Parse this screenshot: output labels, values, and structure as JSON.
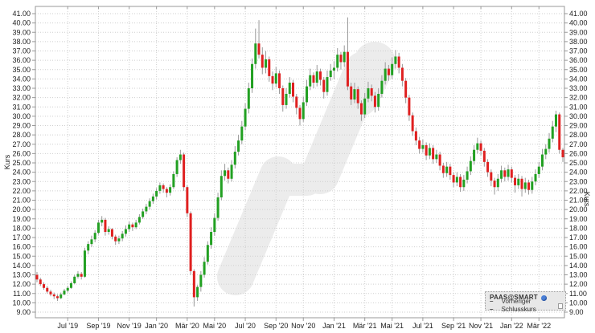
{
  "legend": {
    "series_label": "PAAS@SMART",
    "prev_close_label": "Vorheriger Schlusskurs",
    "dash_icon": "– –"
  },
  "chart_data": {
    "type": "candlestick",
    "ylabel": "Kurs",
    "ylim": [
      9,
      41
    ],
    "y_tick_step": 1,
    "grid": "dotted",
    "y_tick_labels": [
      "41.00",
      "40.00",
      "39.00",
      "38.00",
      "37.00",
      "36.00",
      "35.00",
      "34.00",
      "33.00",
      "32.00",
      "31.00",
      "30.00",
      "29.00",
      "28.00",
      "27.00",
      "26.00",
      "25.00",
      "24.00",
      "23.00",
      "22.00",
      "21.00",
      "20.00",
      "19.00",
      "18.00",
      "17.00",
      "16.00",
      "15.00",
      "14.00",
      "13.00",
      "12.00",
      "11.00",
      "10.00",
      "9.00"
    ],
    "x_ticks": [
      {
        "label": "Jul '19",
        "week": 9
      },
      {
        "label": "Sep '19",
        "week": 18
      },
      {
        "label": "Nov '19",
        "week": 27
      },
      {
        "label": "Jan '20",
        "week": 35
      },
      {
        "label": "Mär '20",
        "week": 44
      },
      {
        "label": "Mai '20",
        "week": 52
      },
      {
        "label": "Jul '20",
        "week": 61
      },
      {
        "label": "Sep '20",
        "week": 70
      },
      {
        "label": "Nov '20",
        "week": 78
      },
      {
        "label": "Jan '21",
        "week": 87
      },
      {
        "label": "Mär '21",
        "week": 96
      },
      {
        "label": "Mai '21",
        "week": 104
      },
      {
        "label": "Jul '21",
        "week": 113
      },
      {
        "label": "Sep '21",
        "week": 122
      },
      {
        "label": "Nov '21",
        "week": 130
      },
      {
        "label": "Jan '22",
        "week": 139
      },
      {
        "label": "Mär '22",
        "week": 147
      }
    ],
    "up_color": "#22a022",
    "down_color": "#df2020",
    "wick_color": "#999999",
    "grid_color": "#cfcfcf",
    "frame_color": "#9a9a9a",
    "text_color": "#222222",
    "watermark_color": "#ececec",
    "candles": [
      [
        13.0,
        13.3,
        12.2,
        12.5
      ],
      [
        12.5,
        12.7,
        11.8,
        12.0
      ],
      [
        12.0,
        12.2,
        11.4,
        11.6
      ],
      [
        11.6,
        11.8,
        11.0,
        11.2
      ],
      [
        11.2,
        11.4,
        10.7,
        10.9
      ],
      [
        10.9,
        11.1,
        10.4,
        10.7
      ],
      [
        10.7,
        10.9,
        10.2,
        10.5
      ],
      [
        10.5,
        11.1,
        10.4,
        10.9
      ],
      [
        10.9,
        11.5,
        10.8,
        11.3
      ],
      [
        11.3,
        11.8,
        11.1,
        11.6
      ],
      [
        11.6,
        12.3,
        11.5,
        12.1
      ],
      [
        12.1,
        13.0,
        12.0,
        12.8
      ],
      [
        12.8,
        13.4,
        12.6,
        13.1
      ],
      [
        13.1,
        13.3,
        12.5,
        12.8
      ],
      [
        12.8,
        15.9,
        12.7,
        15.6
      ],
      [
        15.6,
        16.6,
        15.2,
        16.3
      ],
      [
        16.3,
        17.2,
        16.0,
        16.8
      ],
      [
        16.8,
        17.8,
        16.5,
        17.5
      ],
      [
        17.5,
        18.9,
        17.3,
        18.6
      ],
      [
        18.6,
        19.3,
        18.2,
        18.9
      ],
      [
        18.9,
        19.1,
        17.2,
        17.6
      ],
      [
        17.6,
        18.2,
        17.3,
        17.9
      ],
      [
        17.9,
        18.0,
        16.8,
        17.1
      ],
      [
        17.1,
        17.3,
        16.2,
        16.6
      ],
      [
        16.6,
        17.2,
        16.3,
        16.9
      ],
      [
        16.9,
        17.7,
        16.6,
        17.4
      ],
      [
        17.4,
        18.3,
        17.1,
        17.9
      ],
      [
        17.9,
        18.7,
        17.6,
        18.4
      ],
      [
        18.4,
        18.6,
        17.7,
        18.1
      ],
      [
        18.1,
        18.9,
        17.9,
        18.6
      ],
      [
        18.6,
        19.5,
        18.4,
        19.2
      ],
      [
        19.2,
        20.1,
        19.0,
        19.8
      ],
      [
        19.8,
        20.6,
        19.5,
        20.3
      ],
      [
        20.3,
        21.2,
        20.0,
        20.9
      ],
      [
        20.9,
        21.7,
        20.6,
        21.4
      ],
      [
        21.4,
        22.3,
        21.1,
        22.0
      ],
      [
        22.0,
        22.9,
        21.7,
        22.6
      ],
      [
        22.6,
        22.8,
        21.8,
        22.2
      ],
      [
        22.2,
        22.4,
        21.3,
        21.8
      ],
      [
        21.8,
        22.7,
        21.5,
        22.4
      ],
      [
        22.4,
        24.1,
        22.2,
        23.8
      ],
      [
        23.8,
        25.6,
        23.5,
        25.3
      ],
      [
        25.3,
        26.4,
        24.9,
        25.9
      ],
      [
        25.9,
        26.1,
        22.0,
        22.4
      ],
      [
        22.4,
        22.6,
        19.2,
        19.6
      ],
      [
        19.6,
        19.8,
        13.0,
        13.4
      ],
      [
        13.4,
        13.6,
        9.6,
        10.6
      ],
      [
        10.6,
        11.9,
        10.2,
        11.7
      ],
      [
        11.7,
        13.4,
        11.2,
        13.0
      ],
      [
        13.0,
        14.9,
        12.7,
        14.4
      ],
      [
        14.4,
        16.6,
        14.1,
        16.2
      ],
      [
        16.2,
        18.1,
        15.8,
        17.6
      ],
      [
        17.6,
        19.6,
        17.2,
        19.1
      ],
      [
        19.1,
        21.8,
        18.8,
        21.3
      ],
      [
        21.3,
        24.2,
        21.0,
        23.6
      ],
      [
        23.6,
        24.9,
        23.1,
        24.2
      ],
      [
        24.2,
        24.5,
        22.8,
        23.3
      ],
      [
        23.3,
        25.3,
        23.0,
        24.8
      ],
      [
        24.8,
        26.8,
        24.4,
        26.2
      ],
      [
        26.2,
        28.0,
        25.8,
        27.4
      ],
      [
        27.4,
        29.5,
        27.0,
        28.9
      ],
      [
        28.9,
        31.4,
        28.5,
        30.8
      ],
      [
        30.8,
        33.6,
        30.3,
        33.0
      ],
      [
        33.0,
        36.2,
        32.5,
        35.6
      ],
      [
        35.6,
        39.4,
        35.1,
        37.8
      ],
      [
        37.8,
        40.3,
        36.2,
        36.6
      ],
      [
        36.6,
        37.4,
        34.5,
        35.2
      ],
      [
        35.2,
        37.0,
        34.6,
        36.1
      ],
      [
        36.1,
        36.4,
        33.7,
        34.3
      ],
      [
        34.3,
        34.8,
        32.8,
        33.5
      ],
      [
        33.5,
        35.3,
        33.1,
        34.6
      ],
      [
        34.6,
        34.9,
        32.4,
        33.0
      ],
      [
        33.0,
        33.3,
        30.5,
        31.2
      ],
      [
        31.2,
        33.0,
        30.8,
        32.4
      ],
      [
        32.4,
        34.2,
        32.0,
        33.6
      ],
      [
        33.6,
        33.9,
        31.5,
        32.1
      ],
      [
        32.1,
        32.4,
        30.2,
        30.9
      ],
      [
        30.9,
        31.2,
        29.0,
        29.7
      ],
      [
        29.7,
        32.1,
        29.4,
        31.5
      ],
      [
        31.5,
        33.9,
        31.1,
        33.2
      ],
      [
        33.2,
        35.1,
        32.8,
        34.4
      ],
      [
        34.4,
        34.7,
        33.0,
        33.6
      ],
      [
        33.6,
        35.5,
        33.2,
        34.8
      ],
      [
        34.8,
        35.1,
        33.3,
        33.9
      ],
      [
        33.9,
        34.2,
        31.9,
        32.6
      ],
      [
        32.6,
        34.9,
        32.2,
        34.2
      ],
      [
        34.2,
        35.6,
        33.8,
        34.9
      ],
      [
        34.9,
        35.9,
        34.0,
        35.2
      ],
      [
        35.2,
        37.3,
        34.8,
        36.6
      ],
      [
        36.6,
        36.9,
        35.0,
        35.8
      ],
      [
        35.8,
        37.6,
        35.3,
        36.9
      ],
      [
        36.9,
        40.6,
        32.8,
        33.2
      ],
      [
        33.2,
        33.6,
        31.2,
        31.8
      ],
      [
        31.8,
        33.6,
        31.4,
        32.9
      ],
      [
        32.9,
        33.2,
        30.8,
        31.4
      ],
      [
        31.4,
        31.7,
        29.5,
        30.2
      ],
      [
        30.2,
        32.5,
        29.8,
        31.9
      ],
      [
        31.9,
        33.7,
        31.5,
        33.0
      ],
      [
        33.0,
        33.4,
        31.6,
        32.2
      ],
      [
        32.2,
        32.6,
        30.4,
        31.0
      ],
      [
        31.0,
        33.0,
        30.6,
        32.4
      ],
      [
        32.4,
        34.4,
        32.0,
        33.8
      ],
      [
        33.8,
        35.8,
        33.4,
        35.1
      ],
      [
        35.1,
        35.5,
        33.8,
        34.4
      ],
      [
        34.4,
        36.3,
        34.0,
        35.6
      ],
      [
        35.6,
        37.1,
        35.1,
        36.4
      ],
      [
        36.4,
        36.8,
        34.6,
        35.2
      ],
      [
        35.2,
        35.6,
        33.2,
        33.8
      ],
      [
        33.8,
        34.1,
        31.4,
        32.0
      ],
      [
        32.0,
        32.3,
        29.5,
        30.1
      ],
      [
        30.1,
        30.4,
        27.9,
        28.4
      ],
      [
        28.4,
        28.8,
        26.9,
        27.4
      ],
      [
        27.4,
        27.8,
        26.0,
        26.5
      ],
      [
        26.5,
        27.5,
        26.1,
        26.9
      ],
      [
        26.9,
        27.2,
        25.3,
        25.8
      ],
      [
        25.8,
        27.1,
        25.4,
        26.6
      ],
      [
        26.6,
        26.9,
        24.9,
        25.4
      ],
      [
        25.4,
        26.4,
        25.0,
        25.9
      ],
      [
        25.9,
        26.2,
        24.2,
        24.7
      ],
      [
        24.7,
        25.0,
        23.4,
        23.9
      ],
      [
        23.9,
        25.1,
        23.5,
        24.6
      ],
      [
        24.6,
        24.9,
        23.2,
        23.7
      ],
      [
        23.7,
        24.0,
        22.4,
        22.9
      ],
      [
        22.9,
        24.0,
        22.5,
        23.5
      ],
      [
        23.5,
        23.8,
        21.9,
        22.4
      ],
      [
        22.4,
        23.7,
        22.0,
        23.2
      ],
      [
        23.2,
        24.6,
        22.8,
        24.1
      ],
      [
        24.1,
        25.7,
        23.7,
        25.2
      ],
      [
        25.2,
        26.9,
        24.8,
        26.4
      ],
      [
        26.4,
        27.7,
        26.0,
        27.1
      ],
      [
        27.1,
        27.4,
        25.8,
        26.3
      ],
      [
        26.3,
        26.6,
        24.6,
        25.1
      ],
      [
        25.1,
        25.4,
        23.5,
        24.0
      ],
      [
        24.0,
        24.3,
        22.5,
        23.1
      ],
      [
        23.1,
        23.4,
        21.6,
        22.4
      ],
      [
        22.4,
        23.8,
        22.0,
        23.3
      ],
      [
        23.3,
        24.7,
        22.9,
        24.2
      ],
      [
        24.2,
        24.5,
        23.0,
        23.5
      ],
      [
        23.5,
        24.8,
        23.1,
        24.3
      ],
      [
        24.3,
        24.6,
        22.9,
        23.4
      ],
      [
        23.4,
        23.7,
        21.8,
        22.6
      ],
      [
        22.6,
        23.8,
        22.2,
        23.3
      ],
      [
        23.3,
        23.6,
        21.4,
        22.2
      ],
      [
        22.2,
        23.4,
        21.8,
        22.9
      ],
      [
        22.9,
        23.2,
        21.6,
        22.1
      ],
      [
        22.1,
        23.5,
        21.7,
        23.0
      ],
      [
        23.0,
        24.3,
        22.6,
        23.8
      ],
      [
        23.8,
        25.1,
        23.4,
        24.6
      ],
      [
        24.6,
        26.5,
        24.2,
        25.9
      ],
      [
        25.9,
        27.0,
        25.4,
        26.5
      ],
      [
        26.5,
        28.2,
        26.1,
        27.6
      ],
      [
        27.6,
        29.5,
        27.2,
        28.9
      ],
      [
        28.9,
        30.6,
        28.3,
        30.2
      ],
      [
        30.2,
        30.4,
        26.0,
        26.4
      ],
      [
        26.4,
        26.6,
        25.1,
        25.6
      ]
    ]
  }
}
